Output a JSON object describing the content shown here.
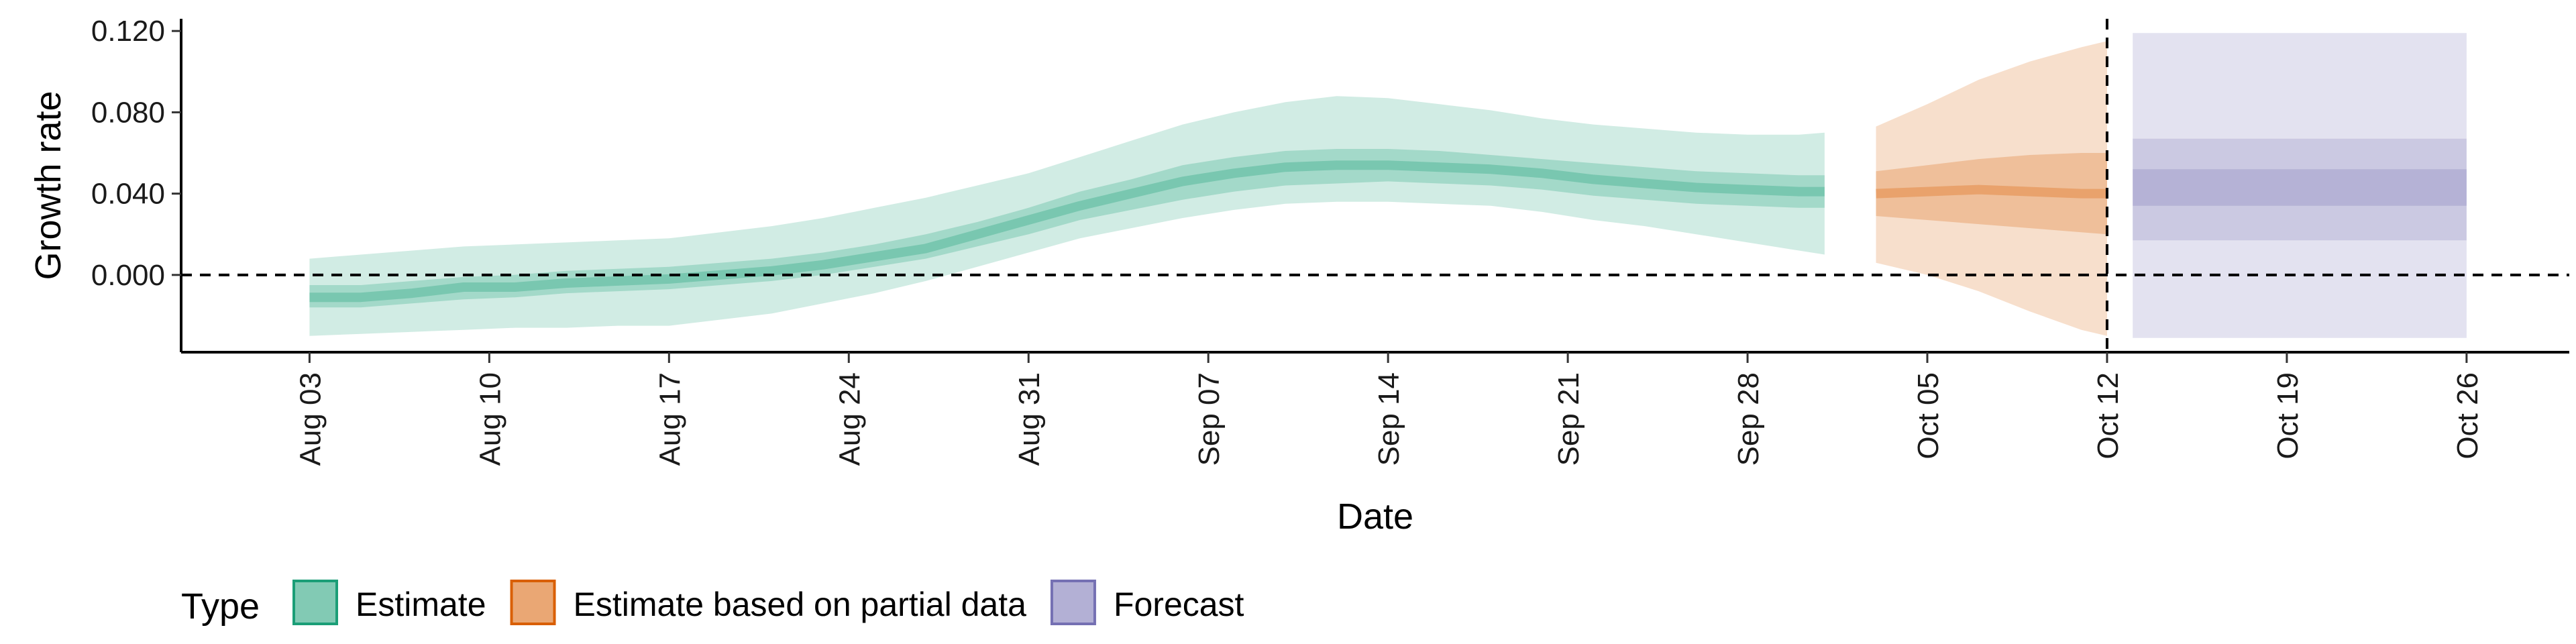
{
  "chart_data": {
    "type": "area",
    "xlabel": "Date",
    "ylabel": "Growth rate",
    "y_ticks": [
      0.0,
      0.04,
      0.08,
      0.12
    ],
    "y_tick_labels": [
      "0.000",
      "0.040",
      "0.080",
      "0.120"
    ],
    "ylim": [
      -0.038,
      0.126
    ],
    "x_ticks": [
      "2020-08-03",
      "2020-08-10",
      "2020-08-17",
      "2020-08-24",
      "2020-08-31",
      "2020-09-07",
      "2020-09-14",
      "2020-09-21",
      "2020-09-28",
      "2020-10-05",
      "2020-10-12",
      "2020-10-19",
      "2020-10-26"
    ],
    "x_tick_labels": [
      "Aug 03",
      "Aug 10",
      "Aug 17",
      "Aug 24",
      "Aug 31",
      "Sep 07",
      "Sep 14",
      "Sep 21",
      "Sep 28",
      "Oct 05",
      "Oct 12",
      "Oct 19",
      "Oct 26"
    ],
    "xlim": [
      "2020-07-29",
      "2020-10-30"
    ],
    "reference_lines": {
      "horizontal_y": 0.0,
      "vertical_x": "2020-10-12"
    },
    "grid": false,
    "legend": {
      "title": "Type",
      "position": "bottom-left",
      "entries": [
        "Estimate",
        "Estimate based on partial data",
        "Forecast"
      ]
    },
    "series": [
      {
        "name": "Estimate",
        "color": "#1b9e77",
        "x": [
          "2020-08-03",
          "2020-08-05",
          "2020-08-07",
          "2020-08-09",
          "2020-08-11",
          "2020-08-13",
          "2020-08-15",
          "2020-08-17",
          "2020-08-19",
          "2020-08-21",
          "2020-08-23",
          "2020-08-25",
          "2020-08-27",
          "2020-08-29",
          "2020-08-31",
          "2020-09-02",
          "2020-09-04",
          "2020-09-06",
          "2020-09-08",
          "2020-09-10",
          "2020-09-12",
          "2020-09-14",
          "2020-09-16",
          "2020-09-18",
          "2020-09-20",
          "2020-09-22",
          "2020-09-24",
          "2020-09-26",
          "2020-09-28",
          "2020-09-30",
          "2020-10-01"
        ],
        "median": [
          -0.011,
          -0.011,
          -0.009,
          -0.006,
          -0.006,
          -0.004,
          -0.003,
          -0.002,
          0.0,
          0.002,
          0.005,
          0.009,
          0.013,
          0.02,
          0.027,
          0.034,
          0.04,
          0.046,
          0.05,
          0.053,
          0.054,
          0.054,
          0.053,
          0.052,
          0.05,
          0.047,
          0.045,
          0.043,
          0.042,
          0.041,
          0.041
        ],
        "lower_50": [
          -0.016,
          -0.016,
          -0.014,
          -0.012,
          -0.011,
          -0.009,
          -0.008,
          -0.007,
          -0.005,
          -0.003,
          0.0,
          0.004,
          0.008,
          0.014,
          0.02,
          0.027,
          0.032,
          0.037,
          0.041,
          0.044,
          0.045,
          0.046,
          0.045,
          0.044,
          0.042,
          0.039,
          0.037,
          0.035,
          0.034,
          0.033,
          0.033
        ],
        "upper_50": [
          -0.005,
          -0.005,
          -0.003,
          -0.001,
          0.0,
          0.002,
          0.003,
          0.004,
          0.006,
          0.008,
          0.011,
          0.015,
          0.02,
          0.026,
          0.033,
          0.041,
          0.047,
          0.054,
          0.058,
          0.061,
          0.062,
          0.062,
          0.061,
          0.059,
          0.057,
          0.055,
          0.053,
          0.051,
          0.05,
          0.049,
          0.049
        ],
        "lower_90": [
          -0.03,
          -0.029,
          -0.028,
          -0.027,
          -0.026,
          -0.026,
          -0.025,
          -0.025,
          -0.022,
          -0.019,
          -0.014,
          -0.009,
          -0.003,
          0.004,
          0.011,
          0.018,
          0.023,
          0.028,
          0.032,
          0.035,
          0.036,
          0.036,
          0.035,
          0.034,
          0.031,
          0.027,
          0.024,
          0.02,
          0.016,
          0.012,
          0.01
        ],
        "upper_90": [
          0.008,
          0.01,
          0.012,
          0.014,
          0.015,
          0.016,
          0.017,
          0.018,
          0.021,
          0.024,
          0.028,
          0.033,
          0.038,
          0.044,
          0.05,
          0.058,
          0.066,
          0.074,
          0.08,
          0.085,
          0.088,
          0.087,
          0.084,
          0.081,
          0.077,
          0.074,
          0.072,
          0.07,
          0.069,
          0.069,
          0.07
        ]
      },
      {
        "name": "Estimate based on partial data",
        "color": "#d95f02",
        "x": [
          "2020-10-03",
          "2020-10-05",
          "2020-10-07",
          "2020-10-09",
          "2020-10-11",
          "2020-10-12"
        ],
        "median": [
          0.04,
          0.041,
          0.042,
          0.041,
          0.04,
          0.04
        ],
        "lower_50": [
          0.029,
          0.027,
          0.025,
          0.023,
          0.021,
          0.02
        ],
        "upper_50": [
          0.051,
          0.054,
          0.057,
          0.059,
          0.06,
          0.06
        ],
        "lower_90": [
          0.006,
          0.0,
          -0.008,
          -0.018,
          -0.027,
          -0.03
        ],
        "upper_90": [
          0.073,
          0.084,
          0.096,
          0.105,
          0.112,
          0.115
        ]
      },
      {
        "name": "Forecast",
        "color": "#7570b3",
        "x": [
          "2020-10-13",
          "2020-10-26"
        ],
        "median": [
          0.043,
          0.043
        ],
        "lower_50": [
          0.034,
          0.034
        ],
        "upper_50": [
          0.052,
          0.052
        ],
        "lower_30": [
          0.017,
          0.017
        ],
        "upper_30": [
          0.067,
          0.067
        ],
        "lower_90": [
          -0.031,
          -0.031
        ],
        "upper_90": [
          0.119,
          0.119
        ]
      }
    ]
  }
}
